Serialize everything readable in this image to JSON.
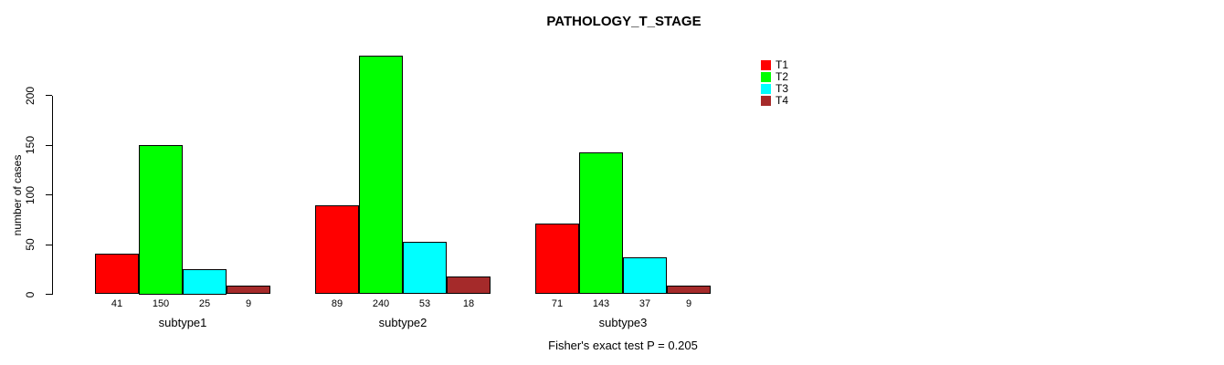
{
  "title": "PATHOLOGY_T_STAGE",
  "ylabel": "number of cases",
  "footer": "Fisher's exact test P = 0.205",
  "legend": {
    "items": [
      {
        "label": "T1",
        "color": "#ff0000"
      },
      {
        "label": "T2",
        "color": "#00ff00"
      },
      {
        "label": "T3",
        "color": "#00ffff"
      },
      {
        "label": "T4",
        "color": "#a52a2a"
      }
    ]
  },
  "chart_data": {
    "type": "bar",
    "title": "PATHOLOGY_T_STAGE",
    "ylabel": "number of cases",
    "xlabel": "",
    "categories": [
      "subtype1",
      "subtype2",
      "subtype3"
    ],
    "series": [
      {
        "name": "T1",
        "color": "#ff0000",
        "values": [
          41,
          89,
          71
        ]
      },
      {
        "name": "T2",
        "color": "#00ff00",
        "values": [
          150,
          240,
          143
        ]
      },
      {
        "name": "T3",
        "color": "#00ffff",
        "values": [
          25,
          53,
          37
        ]
      },
      {
        "name": "T4",
        "color": "#a52a2a",
        "values": [
          9,
          18,
          9
        ]
      }
    ],
    "yticks": [
      0,
      50,
      100,
      150,
      200
    ],
    "ylim": [
      0,
      240
    ],
    "grid": false,
    "legend_position": "top-right",
    "bar_value_labels": true,
    "annotation": "Fisher's exact test P = 0.205"
  }
}
